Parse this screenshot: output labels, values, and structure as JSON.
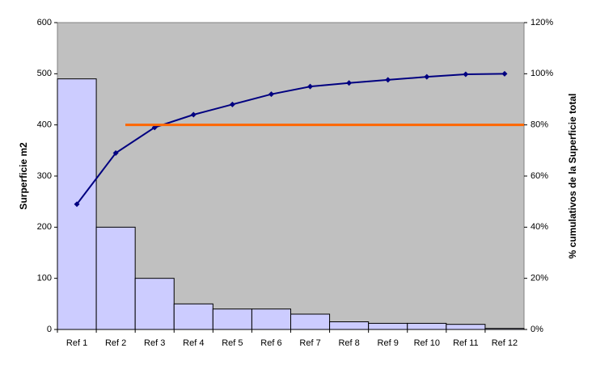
{
  "chart_data": {
    "type": "pareto",
    "categories": [
      "Ref 1",
      "Ref 2",
      "Ref 3",
      "Ref 4",
      "Ref 5",
      "Ref 6",
      "Ref 7",
      "Ref 8",
      "Ref 9",
      "Ref 10",
      "Ref 11",
      "Ref 12"
    ],
    "series": [
      {
        "type": "bar",
        "color": "#ccccff",
        "values": [
          490,
          200,
          100,
          50,
          40,
          40,
          30,
          15,
          12,
          12,
          10,
          2
        ]
      },
      {
        "type": "line",
        "axis": "y2",
        "color": "#000080",
        "values": [
          49,
          69,
          79,
          84,
          88,
          92,
          95,
          96.4,
          97.6,
          98.8,
          99.8,
          100
        ]
      }
    ],
    "reference_line": {
      "value": 80,
      "axis": "y2",
      "color": "#ff6600"
    },
    "ylabel": "Surperficie m2",
    "y2label": "% cumulativos de la Superficie total",
    "ylim": [
      0,
      600
    ],
    "yticks": [
      0,
      100,
      200,
      300,
      400,
      500,
      600
    ],
    "y2lim": [
      0,
      120
    ],
    "y2ticks": [
      {
        "value": 0,
        "label": "0%"
      },
      {
        "value": 20,
        "label": "20%"
      },
      {
        "value": 40,
        "label": "40%"
      },
      {
        "value": 60,
        "label": "60%"
      },
      {
        "value": 80,
        "label": "80%"
      },
      {
        "value": 100,
        "label": "100%"
      },
      {
        "value": 120,
        "label": "120%"
      }
    ],
    "plot_background": "#c0c0c0"
  }
}
